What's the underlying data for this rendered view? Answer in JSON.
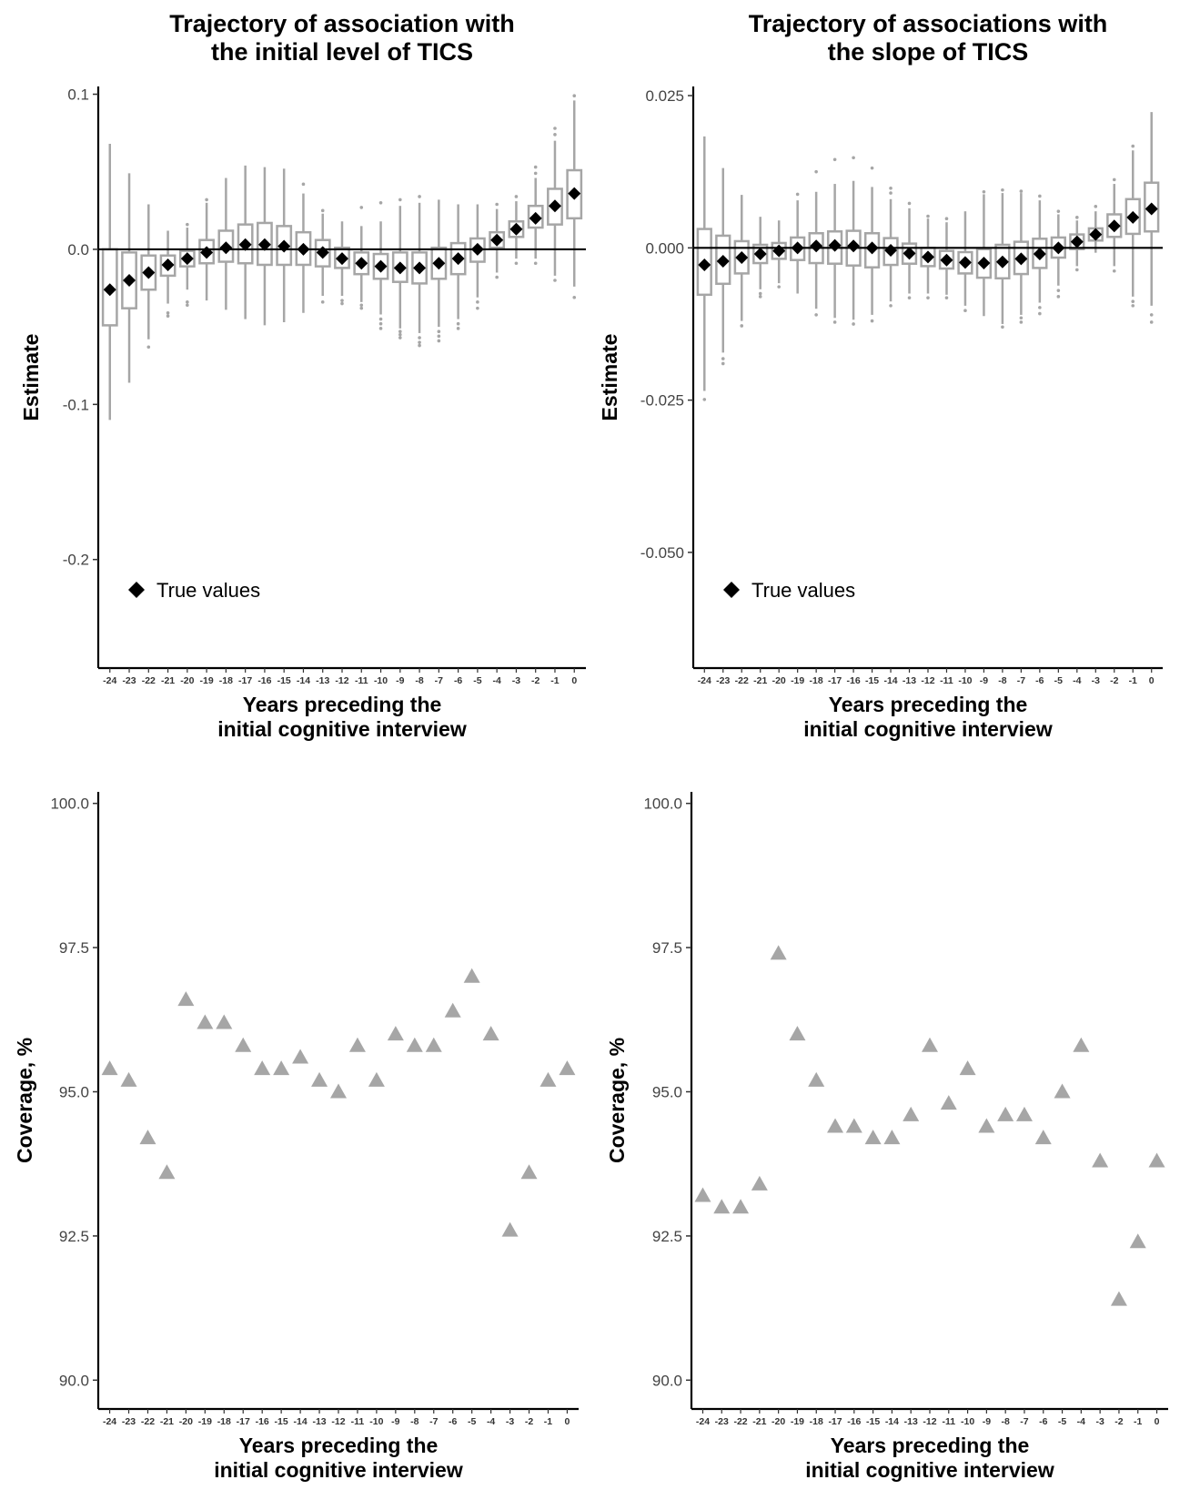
{
  "chart_data": [
    {
      "id": "p1",
      "type": "boxplot",
      "title": [
        "Trajectory of association with",
        "the initial level of TICS"
      ],
      "xlabel": [
        "Years preceding the",
        "initial cognitive interview"
      ],
      "ylabel": "Estimate",
      "categories": [
        "-24",
        "-23",
        "-22",
        "-21",
        "-20",
        "-19",
        "-18",
        "-17",
        "-16",
        "-15",
        "-14",
        "-13",
        "-12",
        "-11",
        "-10",
        "-9",
        "-8",
        "-7",
        "-6",
        "-5",
        "-4",
        "-3",
        "-2",
        "-1",
        "0"
      ],
      "ylim": [
        -0.27,
        0.105
      ],
      "yticks": [
        0.1,
        0.0,
        -0.1,
        -0.2
      ],
      "ytick_labels": [
        "0.1",
        "0.0",
        "-0.1",
        "-0.2"
      ],
      "reference_line": 0,
      "legend": {
        "label": "True values",
        "position": "bottom-left"
      },
      "true_values": [
        -0.026,
        -0.02,
        -0.015,
        -0.01,
        -0.006,
        -0.002,
        0.001,
        0.003,
        0.003,
        0.002,
        0.0,
        -0.002,
        -0.006,
        -0.009,
        -0.011,
        -0.012,
        -0.012,
        -0.009,
        -0.006,
        0.0,
        0.006,
        0.013,
        0.02,
        0.028,
        0.036
      ],
      "boxes": [
        {
          "q1": -0.049,
          "median": -0.026,
          "q3": 0.0,
          "wlo": -0.11,
          "whi": 0.068,
          "outliers": []
        },
        {
          "q1": -0.038,
          "median": -0.02,
          "q3": -0.002,
          "wlo": -0.086,
          "whi": 0.049,
          "outliers": []
        },
        {
          "q1": -0.026,
          "median": -0.015,
          "q3": -0.004,
          "wlo": -0.058,
          "whi": 0.029,
          "outliers": [
            -0.063
          ]
        },
        {
          "q1": -0.017,
          "median": -0.01,
          "q3": -0.004,
          "wlo": -0.035,
          "whi": 0.012,
          "outliers": [
            -0.041,
            -0.043
          ]
        },
        {
          "q1": -0.011,
          "median": -0.006,
          "q3": -0.001,
          "wlo": -0.026,
          "whi": 0.014,
          "outliers": [
            -0.034,
            -0.036,
            0.016
          ]
        },
        {
          "q1": -0.009,
          "median": -0.002,
          "q3": 0.006,
          "wlo": -0.033,
          "whi": 0.03,
          "outliers": [
            0.032
          ]
        },
        {
          "q1": -0.008,
          "median": 0.001,
          "q3": 0.012,
          "wlo": -0.039,
          "whi": 0.046,
          "outliers": []
        },
        {
          "q1": -0.009,
          "median": 0.003,
          "q3": 0.016,
          "wlo": -0.045,
          "whi": 0.054,
          "outliers": []
        },
        {
          "q1": -0.01,
          "median": 0.003,
          "q3": 0.017,
          "wlo": -0.049,
          "whi": 0.053,
          "outliers": []
        },
        {
          "q1": -0.01,
          "median": 0.002,
          "q3": 0.015,
          "wlo": -0.047,
          "whi": 0.052,
          "outliers": []
        },
        {
          "q1": -0.01,
          "median": 0.0,
          "q3": 0.011,
          "wlo": -0.041,
          "whi": 0.036,
          "outliers": [
            0.042
          ]
        },
        {
          "q1": -0.011,
          "median": -0.002,
          "q3": 0.006,
          "wlo": -0.03,
          "whi": 0.023,
          "outliers": [
            -0.034,
            0.025
          ]
        },
        {
          "q1": -0.012,
          "median": -0.006,
          "q3": 0.001,
          "wlo": -0.03,
          "whi": 0.018,
          "outliers": [
            -0.033,
            -0.035
          ]
        },
        {
          "q1": -0.016,
          "median": -0.009,
          "q3": -0.002,
          "wlo": -0.034,
          "whi": 0.015,
          "outliers": [
            -0.036,
            -0.038,
            0.027
          ]
        },
        {
          "q1": -0.019,
          "median": -0.011,
          "q3": -0.003,
          "wlo": -0.042,
          "whi": 0.018,
          "outliers": [
            -0.045,
            -0.048,
            -0.051,
            0.03
          ]
        },
        {
          "q1": -0.021,
          "median": -0.012,
          "q3": -0.002,
          "wlo": -0.051,
          "whi": 0.028,
          "outliers": [
            -0.053,
            -0.055,
            -0.057,
            0.032
          ]
        },
        {
          "q1": -0.022,
          "median": -0.012,
          "q3": -0.002,
          "wlo": -0.054,
          "whi": 0.03,
          "outliers": [
            -0.057,
            -0.06,
            -0.062,
            0.034
          ]
        },
        {
          "q1": -0.019,
          "median": -0.009,
          "q3": 0.001,
          "wlo": -0.05,
          "whi": 0.032,
          "outliers": [
            -0.053,
            -0.056,
            -0.059
          ]
        },
        {
          "q1": -0.016,
          "median": -0.006,
          "q3": 0.004,
          "wlo": -0.045,
          "whi": 0.029,
          "outliers": [
            -0.048,
            -0.051
          ]
        },
        {
          "q1": -0.008,
          "median": 0.0,
          "q3": 0.007,
          "wlo": -0.031,
          "whi": 0.029,
          "outliers": [
            -0.034,
            -0.038
          ]
        },
        {
          "q1": 0.001,
          "median": 0.006,
          "q3": 0.011,
          "wlo": -0.015,
          "whi": 0.026,
          "outliers": [
            -0.018,
            0.029
          ]
        },
        {
          "q1": 0.008,
          "median": 0.013,
          "q3": 0.018,
          "wlo": -0.006,
          "whi": 0.031,
          "outliers": [
            -0.009,
            0.034
          ]
        },
        {
          "q1": 0.014,
          "median": 0.02,
          "q3": 0.028,
          "wlo": -0.006,
          "whi": 0.046,
          "outliers": [
            -0.009,
            0.049,
            0.053
          ]
        },
        {
          "q1": 0.016,
          "median": 0.028,
          "q3": 0.039,
          "wlo": -0.017,
          "whi": 0.07,
          "outliers": [
            -0.02,
            0.074,
            0.078
          ]
        },
        {
          "q1": 0.02,
          "median": 0.036,
          "q3": 0.051,
          "wlo": -0.024,
          "whi": 0.096,
          "outliers": [
            -0.031,
            0.099
          ]
        }
      ]
    },
    {
      "id": "p2",
      "type": "boxplot",
      "title": [
        "Trajectory of associations with",
        "the slope of TICS"
      ],
      "xlabel": [
        "Years preceding the",
        "initial cognitive interview"
      ],
      "ylabel": "Estimate",
      "categories": [
        "-24",
        "-23",
        "-22",
        "-21",
        "-20",
        "-19",
        "-18",
        "-17",
        "-16",
        "-15",
        "-14",
        "-13",
        "-12",
        "-11",
        "-10",
        "-9",
        "-8",
        "-7",
        "-6",
        "-5",
        "-4",
        "-3",
        "-2",
        "-1",
        "0"
      ],
      "ylim": [
        -0.069,
        0.0265
      ],
      "yticks": [
        0.025,
        0.0,
        -0.025,
        -0.05
      ],
      "ytick_labels": [
        "0.025",
        "0.000",
        "-0.025",
        "-0.050"
      ],
      "reference_line": 0,
      "legend": {
        "label": "True values",
        "position": "bottom-left"
      },
      "true_values": [
        -0.0028,
        -0.0022,
        -0.0016,
        -0.001,
        -0.0005,
        0.0,
        0.0003,
        0.0004,
        0.0003,
        0.0,
        -0.0004,
        -0.0009,
        -0.0015,
        -0.002,
        -0.0024,
        -0.0025,
        -0.0023,
        -0.0018,
        -0.001,
        0.0,
        0.001,
        0.0022,
        0.0036,
        0.005,
        0.0064
      ],
      "boxes": [
        {
          "q1": -0.0077,
          "median": -0.0028,
          "q3": 0.0031,
          "wlo": -0.0235,
          "whi": 0.0183,
          "outliers": [
            -0.0249
          ]
        },
        {
          "q1": -0.0059,
          "median": -0.0022,
          "q3": 0.002,
          "wlo": -0.0172,
          "whi": 0.0131,
          "outliers": [
            -0.0182,
            -0.019
          ]
        },
        {
          "q1": -0.0042,
          "median": -0.0016,
          "q3": 0.0011,
          "wlo": -0.012,
          "whi": 0.0087,
          "outliers": [
            -0.0128
          ]
        },
        {
          "q1": -0.0025,
          "median": -0.001,
          "q3": 0.0005,
          "wlo": -0.0068,
          "whi": 0.0051,
          "outliers": [
            -0.0075,
            -0.008
          ]
        },
        {
          "q1": -0.0018,
          "median": -0.0005,
          "q3": 0.0008,
          "wlo": -0.0058,
          "whi": 0.0045,
          "outliers": [
            -0.0064
          ]
        },
        {
          "q1": -0.002,
          "median": 0.0,
          "q3": 0.0017,
          "wlo": -0.0075,
          "whi": 0.0078,
          "outliers": [
            0.0088
          ]
        },
        {
          "q1": -0.0025,
          "median": 0.0003,
          "q3": 0.0024,
          "wlo": -0.01,
          "whi": 0.0092,
          "outliers": [
            -0.011,
            0.0125
          ]
        },
        {
          "q1": -0.0026,
          "median": 0.0004,
          "q3": 0.0027,
          "wlo": -0.0115,
          "whi": 0.0105,
          "outliers": [
            -0.0122,
            0.0145
          ]
        },
        {
          "q1": -0.0029,
          "median": 0.0003,
          "q3": 0.0028,
          "wlo": -0.0118,
          "whi": 0.011,
          "outliers": [
            -0.0125,
            0.0148
          ]
        },
        {
          "q1": -0.0032,
          "median": 0.0,
          "q3": 0.0024,
          "wlo": -0.011,
          "whi": 0.01,
          "outliers": [
            -0.012,
            0.0131
          ]
        },
        {
          "q1": -0.0028,
          "median": -0.0004,
          "q3": 0.0016,
          "wlo": -0.0088,
          "whi": 0.008,
          "outliers": [
            -0.0095,
            0.009,
            0.0098
          ]
        },
        {
          "q1": -0.0026,
          "median": -0.0009,
          "q3": 0.0007,
          "wlo": -0.0075,
          "whi": 0.0065,
          "outliers": [
            -0.0082,
            0.0073
          ]
        },
        {
          "q1": -0.003,
          "median": -0.0015,
          "q3": 0.0,
          "wlo": -0.0075,
          "whi": 0.0048,
          "outliers": [
            -0.0082,
            0.0052
          ]
        },
        {
          "q1": -0.0034,
          "median": -0.002,
          "q3": -0.0005,
          "wlo": -0.0077,
          "whi": 0.0042,
          "outliers": [
            -0.0082,
            0.0048
          ]
        },
        {
          "q1": -0.0042,
          "median": -0.0024,
          "q3": -0.0007,
          "wlo": -0.0095,
          "whi": 0.006,
          "outliers": [
            -0.0103
          ]
        },
        {
          "q1": -0.0049,
          "median": -0.0025,
          "q3": -0.0002,
          "wlo": -0.0112,
          "whi": 0.0088,
          "outliers": [
            0.0092
          ]
        },
        {
          "q1": -0.005,
          "median": -0.0023,
          "q3": 0.0005,
          "wlo": -0.0125,
          "whi": 0.009,
          "outliers": [
            -0.013,
            0.0095
          ]
        },
        {
          "q1": -0.0043,
          "median": -0.0018,
          "q3": 0.001,
          "wlo": -0.011,
          "whi": 0.009,
          "outliers": [
            -0.0115,
            -0.0122,
            0.0093
          ]
        },
        {
          "q1": -0.0033,
          "median": -0.001,
          "q3": 0.0015,
          "wlo": -0.009,
          "whi": 0.0078,
          "outliers": [
            -0.0098,
            -0.0108,
            0.0085
          ]
        },
        {
          "q1": -0.0016,
          "median": 0.0,
          "q3": 0.0017,
          "wlo": -0.0062,
          "whi": 0.0055,
          "outliers": [
            -0.007,
            -0.008,
            0.006
          ]
        },
        {
          "q1": -0.0002,
          "median": 0.001,
          "q3": 0.0022,
          "wlo": -0.003,
          "whi": 0.0045,
          "outliers": [
            -0.0036,
            0.005
          ]
        },
        {
          "q1": 0.0012,
          "median": 0.0022,
          "q3": 0.0032,
          "wlo": -0.0008,
          "whi": 0.006,
          "outliers": [
            0.0068
          ]
        },
        {
          "q1": 0.0018,
          "median": 0.0036,
          "q3": 0.0055,
          "wlo": -0.003,
          "whi": 0.0105,
          "outliers": [
            -0.0038,
            0.0112
          ]
        },
        {
          "q1": 0.0023,
          "median": 0.005,
          "q3": 0.008,
          "wlo": -0.008,
          "whi": 0.016,
          "outliers": [
            -0.0088,
            -0.0095,
            0.0167
          ]
        },
        {
          "q1": 0.0027,
          "median": 0.0064,
          "q3": 0.0107,
          "wlo": -0.0095,
          "whi": 0.0223,
          "outliers": [
            -0.011,
            -0.0122
          ]
        }
      ]
    },
    {
      "id": "p3",
      "type": "scatter",
      "marker": "triangle",
      "xlabel": [
        "Years preceding the",
        "initial cognitive interview"
      ],
      "ylabel": "Coverage, %",
      "categories": [
        "-24",
        "-23",
        "-22",
        "-21",
        "-20",
        "-19",
        "-18",
        "-17",
        "-16",
        "-15",
        "-14",
        "-13",
        "-12",
        "-11",
        "-10",
        "-9",
        "-8",
        "-7",
        "-6",
        "-5",
        "-4",
        "-3",
        "-2",
        "-1",
        "0"
      ],
      "ylim": [
        89.5,
        100.2
      ],
      "yticks": [
        100.0,
        97.5,
        95.0,
        92.5,
        90.0
      ],
      "ytick_labels": [
        "100.0",
        "97.5",
        "95.0",
        "92.5",
        "90.0"
      ],
      "values": [
        95.4,
        95.2,
        94.2,
        93.6,
        96.6,
        96.2,
        96.2,
        95.8,
        95.4,
        95.4,
        95.6,
        95.2,
        95.0,
        95.8,
        95.2,
        96.0,
        95.8,
        95.8,
        96.4,
        97.0,
        96.0,
        92.6,
        93.6,
        95.2,
        95.4
      ]
    },
    {
      "id": "p4",
      "type": "scatter",
      "marker": "triangle",
      "xlabel": [
        "Years preceding the",
        "initial cognitive interview"
      ],
      "ylabel": "Coverage, %",
      "categories": [
        "-24",
        "-23",
        "-22",
        "-21",
        "-20",
        "-19",
        "-18",
        "-17",
        "-16",
        "-15",
        "-14",
        "-13",
        "-12",
        "-11",
        "-10",
        "-9",
        "-8",
        "-7",
        "-6",
        "-5",
        "-4",
        "-3",
        "-2",
        "-1",
        "0"
      ],
      "ylim": [
        89.5,
        100.2
      ],
      "yticks": [
        100.0,
        97.5,
        95.0,
        92.5,
        90.0
      ],
      "ytick_labels": [
        "100.0",
        "97.5",
        "95.0",
        "92.5",
        "90.0"
      ],
      "values": [
        93.2,
        93.0,
        93.0,
        93.4,
        97.4,
        96.0,
        95.2,
        94.4,
        94.4,
        94.2,
        94.2,
        94.6,
        95.8,
        94.8,
        95.4,
        94.4,
        94.6,
        94.6,
        94.2,
        95.0,
        95.8,
        93.8,
        91.4,
        92.4,
        93.8
      ]
    }
  ]
}
